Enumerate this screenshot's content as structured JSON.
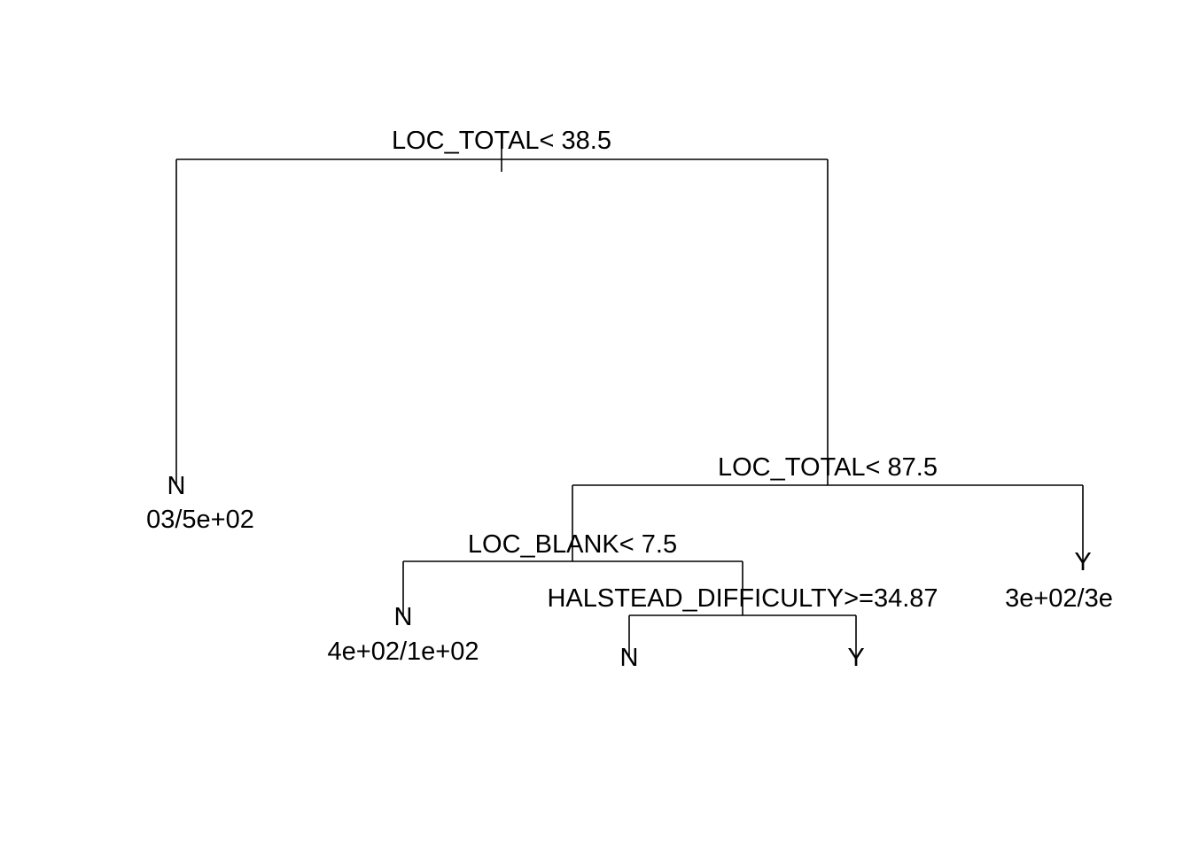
{
  "tree": {
    "root_split": "LOC_TOTAL< 38.5",
    "split_loc_total_87": "LOC_TOTAL< 87.5",
    "split_loc_blank": "LOC_BLANK< 7.5",
    "split_halstead": "HALSTEAD_DIFFICULTY>=34.87",
    "leaves": {
      "leaf1": {
        "class": "N",
        "counts": "03/5e+02"
      },
      "leaf2": {
        "class": "N",
        "counts": "4e+02/1e+02"
      },
      "leaf3": {
        "class": "N"
      },
      "leaf4": {
        "class": "Y"
      },
      "leaf5": {
        "class": "Y",
        "counts": "3e+02/3e"
      }
    }
  },
  "colors": {
    "line": "#000000",
    "text": "#000000",
    "background": "#ffffff"
  }
}
